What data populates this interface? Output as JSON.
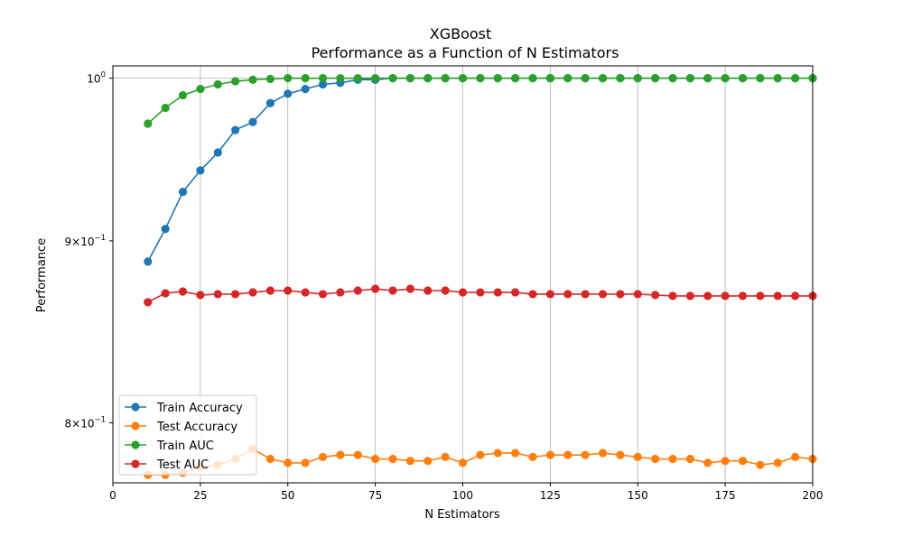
{
  "chart_data": {
    "type": "line",
    "title": "XGBoost",
    "subtitle": "Performance as a Function of N Estimators",
    "xlabel": "N Estimators",
    "ylabel": "Performance",
    "xlim": [
      0,
      200
    ],
    "ylim": [
      0.7695,
      1.008
    ],
    "yscale": "log",
    "grid": "x-major",
    "legend_position": "lower-left",
    "x_ticks": [
      0,
      25,
      50,
      75,
      100,
      125,
      150,
      175,
      200
    ],
    "x_tick_labels": [
      "0",
      "25",
      "50",
      "75",
      "100",
      "125",
      "150",
      "175",
      "200"
    ],
    "y_ticks": [
      0.8,
      0.9,
      1.0
    ],
    "y_tick_labels": [
      {
        "base": "8",
        "times": "×",
        "ten": "10",
        "exp": "−1"
      },
      {
        "base": "9",
        "times": "×",
        "ten": "10",
        "exp": "−1"
      },
      {
        "base": "",
        "times": "",
        "ten": "10",
        "exp": "0"
      }
    ],
    "x": [
      10,
      15,
      20,
      25,
      30,
      35,
      40,
      45,
      50,
      55,
      60,
      65,
      70,
      75,
      80,
      85,
      90,
      95,
      100,
      105,
      110,
      115,
      120,
      125,
      130,
      135,
      140,
      145,
      150,
      155,
      160,
      165,
      170,
      175,
      180,
      185,
      190,
      195,
      200
    ],
    "series": [
      {
        "name": "Train Accuracy",
        "color": "#1f77b4",
        "values": [
          0.888,
          0.907,
          0.929,
          0.942,
          0.953,
          0.967,
          0.972,
          0.984,
          0.99,
          0.993,
          0.996,
          0.997,
          0.999,
          0.999,
          1.0,
          1.0,
          1.0,
          1.0,
          1.0,
          1.0,
          1.0,
          1.0,
          1.0,
          1.0,
          1.0,
          1.0,
          1.0,
          1.0,
          1.0,
          1.0,
          1.0,
          1.0,
          1.0,
          1.0,
          1.0,
          1.0,
          1.0,
          1.0,
          1.0
        ]
      },
      {
        "name": "Test Accuracy",
        "color": "#ff7f0e",
        "values": [
          0.7735,
          0.7735,
          0.7745,
          0.7775,
          0.7785,
          0.7815,
          0.7865,
          0.7815,
          0.7795,
          0.7795,
          0.7825,
          0.7835,
          0.7835,
          0.7815,
          0.7815,
          0.7805,
          0.7805,
          0.7825,
          0.7795,
          0.7835,
          0.7845,
          0.7845,
          0.7825,
          0.7835,
          0.7835,
          0.7835,
          0.7845,
          0.7835,
          0.7825,
          0.7815,
          0.7815,
          0.7815,
          0.7795,
          0.7805,
          0.7805,
          0.7785,
          0.7795,
          0.7825,
          0.7815
        ]
      },
      {
        "name": "Train AUC",
        "color": "#2ca02c",
        "values": [
          0.971,
          0.981,
          0.989,
          0.993,
          0.996,
          0.998,
          0.999,
          0.9995,
          1.0,
          1.0,
          1.0,
          1.0,
          1.0,
          1.0,
          1.0,
          1.0,
          1.0,
          1.0,
          1.0,
          1.0,
          1.0,
          1.0,
          1.0,
          1.0,
          1.0,
          1.0,
          1.0,
          1.0,
          1.0,
          1.0,
          1.0,
          1.0,
          1.0,
          1.0,
          1.0,
          1.0,
          1.0,
          1.0,
          1.0
        ]
      },
      {
        "name": "Test AUC",
        "color": "#d62728",
        "values": [
          0.865,
          0.87,
          0.871,
          0.869,
          0.8695,
          0.8695,
          0.8705,
          0.8715,
          0.8715,
          0.8705,
          0.8695,
          0.8705,
          0.8715,
          0.8725,
          0.8715,
          0.8725,
          0.8715,
          0.8715,
          0.8705,
          0.8705,
          0.8705,
          0.8705,
          0.8695,
          0.8695,
          0.8695,
          0.8695,
          0.8695,
          0.8695,
          0.8695,
          0.869,
          0.8685,
          0.8685,
          0.8685,
          0.8685,
          0.8685,
          0.8685,
          0.8685,
          0.8685,
          0.8685
        ]
      }
    ]
  }
}
